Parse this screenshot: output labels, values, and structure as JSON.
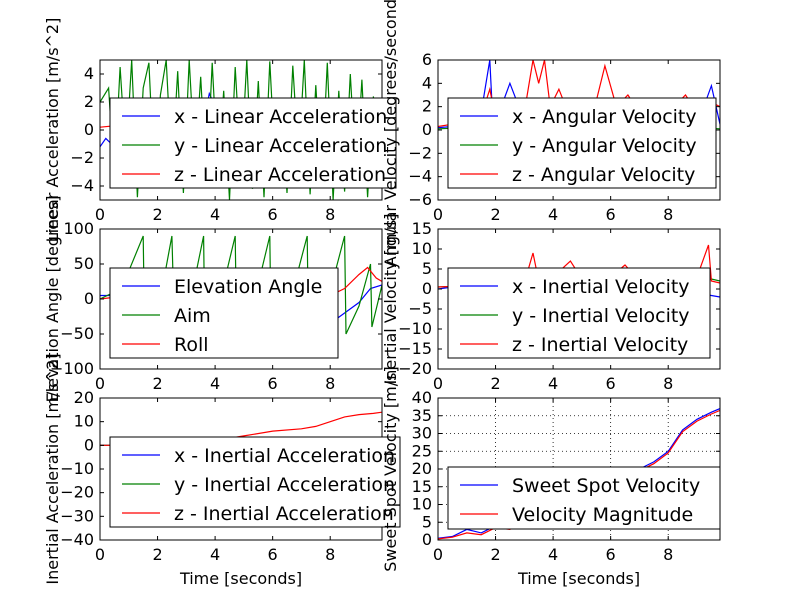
{
  "chart_data": [
    {
      "type": "line",
      "ylabel": "Linear Acceleration [m/s^2]",
      "xlabel": "",
      "xlim": [
        0,
        9.8
      ],
      "ylim": [
        -5,
        5
      ],
      "xticks": [
        0,
        2,
        4,
        6,
        8
      ],
      "yticks": [
        -4,
        -2,
        0,
        2,
        4
      ],
      "grid": false,
      "legend_position": "center",
      "series": [
        {
          "name": "x - Linear Acceleration",
          "color": "#0000ff",
          "x": [
            0,
            0.2,
            0.4,
            0.6,
            0.8,
            1.0,
            1.2,
            1.4,
            1.6,
            1.8,
            2.0,
            2.4,
            2.8,
            3.2,
            3.6,
            3.8,
            4.2,
            4.6,
            5.0,
            5.5,
            6.0,
            6.5,
            7.0,
            7.5,
            8.0,
            8.5,
            9.0,
            9.4,
            9.8
          ],
          "y": [
            -1.2,
            -0.6,
            -1.0,
            0.4,
            1.0,
            1.4,
            0.6,
            -0.4,
            0.8,
            0.2,
            0.6,
            0.9,
            0.3,
            1.2,
            0.5,
            2.6,
            0.8,
            -0.3,
            0.6,
            0.9,
            0.4,
            1.1,
            0.6,
            0.8,
            1.0,
            0.4,
            0.2,
            0.6,
            -0.4
          ]
        },
        {
          "name": "y - Linear Acceleration",
          "color": "#008000",
          "x": [
            0,
            0.3,
            0.5,
            0.7,
            0.9,
            1.1,
            1.3,
            1.5,
            1.7,
            1.9,
            2.1,
            2.3,
            2.5,
            2.7,
            2.9,
            3.1,
            3.3,
            3.5,
            3.7,
            3.9,
            4.1,
            4.3,
            4.5,
            4.7,
            4.9,
            5.1,
            5.3,
            5.5,
            5.7,
            5.9,
            6.1,
            6.3,
            6.5,
            6.7,
            6.9,
            7.1,
            7.3,
            7.5,
            7.7,
            7.9,
            8.1,
            8.3,
            8.5,
            8.7,
            8.9,
            9.1,
            9.3,
            9.5,
            9.7
          ],
          "y": [
            2.0,
            3.0,
            -3.5,
            4.5,
            -2.0,
            5.0,
            -4.8,
            3.0,
            4.8,
            -4.0,
            2.5,
            5.0,
            -3.0,
            4.2,
            -4.5,
            5.0,
            -2.5,
            3.8,
            -4.0,
            4.8,
            -3.2,
            2.8,
            -5.0,
            4.5,
            -2.8,
            5.0,
            -4.2,
            3.5,
            -4.8,
            4.9,
            -3.0,
            2.2,
            -4.5,
            4.6,
            -2.2,
            5.0,
            -4.6,
            3.2,
            -3.8,
            4.8,
            -5.0,
            2.8,
            -4.4,
            4.0,
            -3.4,
            3.6,
            -4.8,
            2.4,
            -3.0
          ]
        },
        {
          "name": "z - Linear Acceleration",
          "color": "#ff0000",
          "x": [
            0,
            1,
            2,
            3,
            4,
            5,
            6,
            7,
            8,
            9,
            9.8
          ],
          "y": [
            0.2,
            0.4,
            0.3,
            0.5,
            0.4,
            0.6,
            0.3,
            0.5,
            0.4,
            0.6,
            0.3
          ]
        }
      ]
    },
    {
      "type": "line",
      "ylabel": "Angular Velocity [degrees/second]",
      "xlabel": "",
      "xlim": [
        0,
        9.8
      ],
      "ylim": [
        -6,
        6
      ],
      "xticks": [
        0,
        2,
        4,
        6,
        8
      ],
      "yticks": [
        -6,
        -4,
        -2,
        0,
        2,
        4,
        6
      ],
      "grid": false,
      "legend_position": "center",
      "series": [
        {
          "name": "x - Angular Velocity",
          "color": "#0000ff",
          "x": [
            0,
            0.5,
            1.0,
            1.5,
            1.8,
            1.9,
            2.2,
            2.5,
            3.0,
            3.5,
            4.0,
            4.5,
            5.0,
            5.5,
            6.0,
            6.5,
            7.0,
            7.5,
            8.0,
            8.5,
            9.0,
            9.5,
            9.8
          ],
          "y": [
            0.2,
            0.3,
            0.5,
            1.5,
            6.0,
            1.0,
            2.0,
            4.0,
            0.8,
            1.2,
            0.5,
            0.8,
            1.0,
            0.6,
            0.4,
            0.9,
            0.5,
            0.8,
            0.6,
            1.0,
            0.4,
            3.8,
            0.5
          ]
        },
        {
          "name": "y - Angular Velocity",
          "color": "#008000",
          "x": [
            0,
            1,
            2,
            3,
            4,
            5,
            6,
            7,
            8,
            9,
            9.8
          ],
          "y": [
            0.1,
            0.2,
            0.1,
            0.3,
            0.2,
            0.1,
            0.2,
            0.3,
            0.1,
            0.2,
            0.1
          ]
        },
        {
          "name": "z - Angular Velocity",
          "color": "#ff0000",
          "x": [
            0,
            0.5,
            1.0,
            1.5,
            1.8,
            2.0,
            2.5,
            3.0,
            3.3,
            3.5,
            3.7,
            3.9,
            4.2,
            4.6,
            5.0,
            5.4,
            5.8,
            6.2,
            6.6,
            7.0,
            7.4,
            7.8,
            8.2,
            8.6,
            9.0,
            9.4,
            9.8
          ],
          "y": [
            0.3,
            0.5,
            0.8,
            1.2,
            3.5,
            1.0,
            2.0,
            1.5,
            6.0,
            4.0,
            6.0,
            2.0,
            3.5,
            1.0,
            2.5,
            1.5,
            5.5,
            2.0,
            3.0,
            1.5,
            2.5,
            1.0,
            2.0,
            3.0,
            1.5,
            2.5,
            2.0
          ]
        }
      ]
    },
    {
      "type": "line",
      "ylabel": "Elevation Angle [degrees]",
      "xlabel": "",
      "xlim": [
        0,
        9.8
      ],
      "ylim": [
        -100,
        100
      ],
      "xticks": [
        0,
        2,
        4,
        6,
        8
      ],
      "yticks": [
        -100,
        -50,
        0,
        50,
        100
      ],
      "grid": false,
      "legend_position": "center",
      "series": [
        {
          "name": "Elevation Angle",
          "color": "#0000ff",
          "x": [
            0,
            1,
            2,
            3,
            4,
            5,
            6,
            7,
            7.5,
            8.0,
            8.5,
            9.0,
            9.4,
            9.8
          ],
          "y": [
            5,
            5,
            5,
            5,
            5,
            5,
            0,
            -15,
            -30,
            -35,
            -20,
            -5,
            15,
            20
          ]
        },
        {
          "name": "Aim",
          "color": "#008000",
          "x": [
            0,
            0.5,
            1.0,
            1.5,
            1.55,
            2.0,
            2.5,
            2.6,
            3.0,
            3.6,
            3.65,
            4.0,
            4.7,
            4.75,
            5.2,
            5.9,
            5.95,
            6.5,
            7.2,
            7.25,
            7.8,
            8.5,
            8.55,
            9.0,
            9.4,
            9.45,
            9.8
          ],
          "y": [
            0,
            10,
            40,
            90,
            -50,
            -20,
            90,
            -60,
            -30,
            90,
            -70,
            -30,
            90,
            -60,
            -30,
            90,
            -60,
            -20,
            90,
            -60,
            -20,
            90,
            -50,
            -10,
            50,
            -40,
            20
          ]
        },
        {
          "name": "Roll",
          "color": "#ff0000",
          "x": [
            0,
            1,
            2,
            3,
            4,
            5,
            6,
            7,
            7.5,
            8.0,
            8.5,
            9.0,
            9.3,
            9.6,
            9.8
          ],
          "y": [
            0,
            5,
            8,
            10,
            12,
            14,
            10,
            15,
            10,
            5,
            15,
            35,
            45,
            30,
            25
          ]
        }
      ]
    },
    {
      "type": "line",
      "ylabel": "Inertial Velocity [m/s]",
      "xlabel": "",
      "xlim": [
        0,
        9.8
      ],
      "ylim": [
        -20,
        15
      ],
      "xticks": [
        0,
        2,
        4,
        6,
        8
      ],
      "yticks": [
        -20,
        -15,
        -10,
        -5,
        0,
        5,
        10,
        15
      ],
      "grid": false,
      "legend_position": "center",
      "series": [
        {
          "name": "x - Inertial Velocity",
          "color": "#0000ff",
          "x": [
            0,
            0.5,
            1,
            2,
            3,
            4,
            5,
            6,
            7,
            8,
            9,
            9.4,
            9.8
          ],
          "y": [
            0,
            0.5,
            0.2,
            0.8,
            0.5,
            1.0,
            0.6,
            0.9,
            0.4,
            0.7,
            0.3,
            -1.5,
            -2.0
          ]
        },
        {
          "name": "y - Inertial Velocity",
          "color": "#008000",
          "x": [
            0,
            1,
            2,
            3,
            4,
            5,
            6,
            7,
            8,
            9,
            9.5,
            9.8
          ],
          "y": [
            0.5,
            0.8,
            1.0,
            0.6,
            1.2,
            0.8,
            0.5,
            1.0,
            1.2,
            1.5,
            2.5,
            2.0
          ]
        },
        {
          "name": "z - Inertial Velocity",
          "color": "#ff0000",
          "x": [
            0,
            1,
            2,
            3,
            3.3,
            3.5,
            4,
            4.6,
            5,
            5.5,
            6,
            6.5,
            7,
            7.5,
            8,
            8.5,
            9,
            9.4,
            9.5,
            9.8
          ],
          "y": [
            0.5,
            0.8,
            1.0,
            1.5,
            9.0,
            2.0,
            3.0,
            7.0,
            2.5,
            5.0,
            3.0,
            6.0,
            2.0,
            4.0,
            2.5,
            5.0,
            3.0,
            11.0,
            2.0,
            1.5
          ]
        }
      ]
    },
    {
      "type": "line",
      "ylabel": "Inertial Acceleration [m/s^2]",
      "xlabel": "Time [seconds]",
      "xlim": [
        0,
        9.8
      ],
      "ylim": [
        -40,
        20
      ],
      "xticks": [
        0,
        2,
        4,
        6,
        8
      ],
      "yticks": [
        -40,
        -30,
        -20,
        -10,
        0,
        10,
        20
      ],
      "grid": false,
      "legend_position": "center",
      "series": [
        {
          "name": "x - Inertial Acceleration",
          "color": "#0000ff",
          "x": [
            0,
            2,
            4,
            6,
            8,
            9.8
          ],
          "y": [
            0,
            0,
            0,
            0,
            0,
            0
          ]
        },
        {
          "name": "y - Inertial Acceleration",
          "color": "#008000",
          "x": [
            0,
            2,
            4,
            6,
            8,
            9.8
          ],
          "y": [
            0,
            0,
            0,
            0,
            0,
            0
          ]
        },
        {
          "name": "z - Inertial Acceleration",
          "color": "#ff0000",
          "x": [
            0,
            1,
            2,
            3,
            4,
            5,
            6,
            7,
            7.5,
            8,
            8.5,
            9,
            9.5,
            9.8
          ],
          "y": [
            0,
            0,
            0.5,
            1,
            2,
            4,
            6,
            7,
            8,
            10,
            12,
            13,
            13.5,
            14
          ]
        }
      ]
    },
    {
      "type": "line",
      "ylabel": "Sweet Spot Velocity [m/s]",
      "xlabel": "Time [seconds]",
      "xlim": [
        0,
        9.8
      ],
      "ylim": [
        0,
        40
      ],
      "xticks": [
        0,
        2,
        4,
        6,
        8
      ],
      "yticks": [
        0,
        5,
        10,
        15,
        20,
        25,
        30,
        35,
        40
      ],
      "grid": true,
      "legend_position": "center",
      "series": [
        {
          "name": "Sweet Spot Velocity",
          "color": "#0000ff",
          "x": [
            0,
            0.5,
            1.0,
            1.5,
            2.0,
            2.5,
            3.0,
            3.5,
            4.0,
            4.5,
            5.0,
            5.5,
            6.0,
            6.5,
            7.0,
            7.5,
            8.0,
            8.5,
            9.0,
            9.5,
            9.8
          ],
          "y": [
            0.5,
            1.0,
            3.0,
            2.0,
            4.0,
            3.5,
            6.0,
            7.0,
            9.0,
            11.0,
            13.0,
            15.0,
            17.0,
            18.0,
            20.0,
            22.0,
            25.0,
            31.0,
            34.0,
            36.0,
            37.0
          ]
        },
        {
          "name": "Velocity Magnitude",
          "color": "#ff0000",
          "x": [
            0,
            0.5,
            1.0,
            1.5,
            2.0,
            2.5,
            3.0,
            3.5,
            4.0,
            4.5,
            5.0,
            5.5,
            6.0,
            6.5,
            7.0,
            7.5,
            8.0,
            8.5,
            9.0,
            9.5,
            9.8
          ],
          "y": [
            0.3,
            0.8,
            2.0,
            1.5,
            3.5,
            3.0,
            5.5,
            6.5,
            8.5,
            10.5,
            12.5,
            14.5,
            16.5,
            17.5,
            19.5,
            21.5,
            24.5,
            30.5,
            33.5,
            35.5,
            36.5
          ]
        }
      ]
    }
  ]
}
